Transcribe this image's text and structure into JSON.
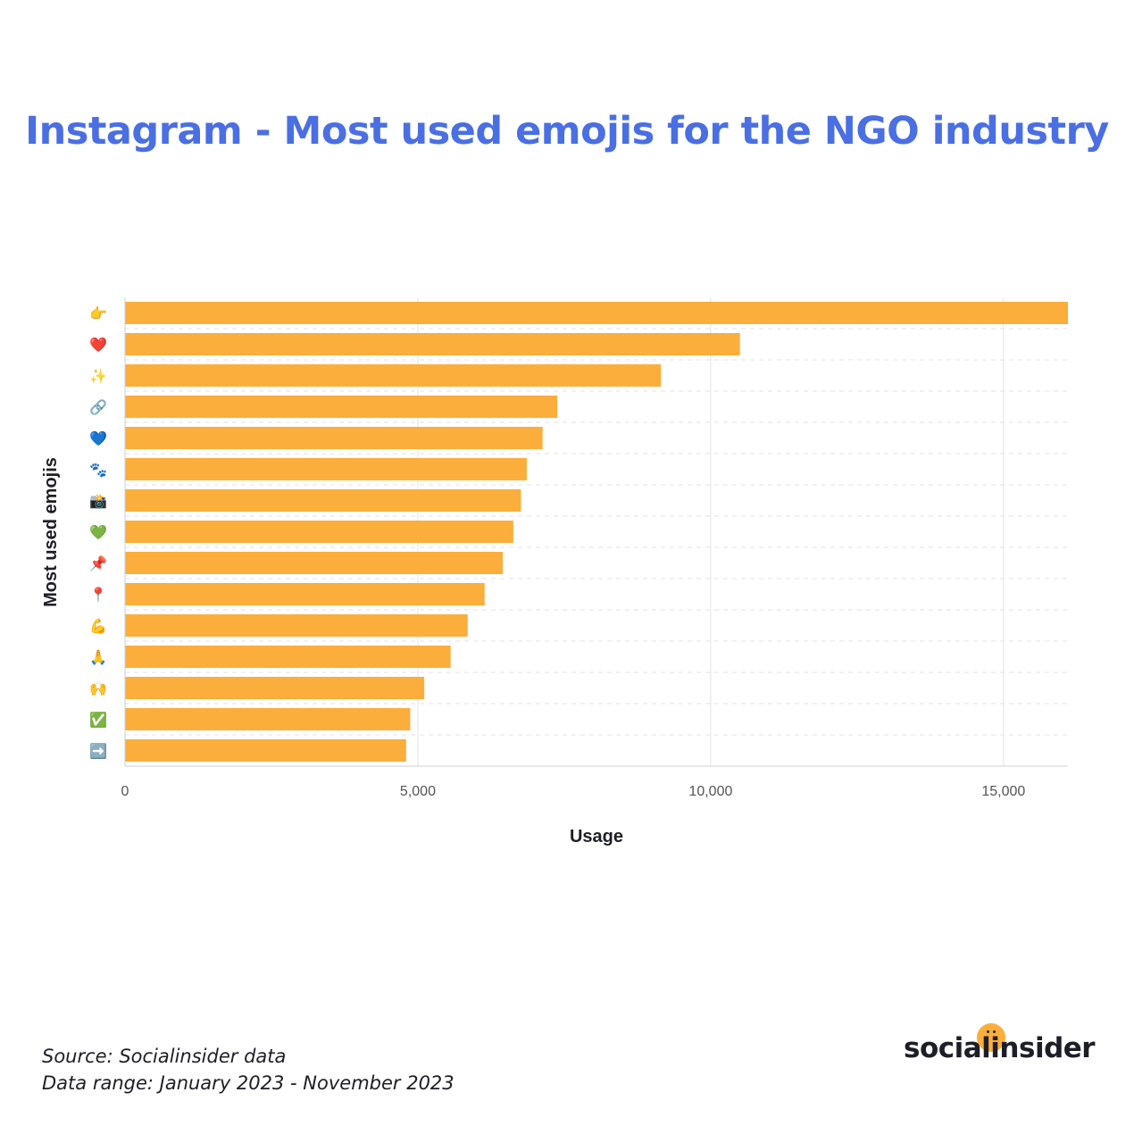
{
  "chart_data": {
    "type": "bar",
    "orientation": "horizontal",
    "title": "Instagram - Most used emojis for the NGO industry",
    "xlabel": "Usage",
    "ylabel": "Most used emojis",
    "xlim": [
      0,
      16100
    ],
    "xticks": [
      0,
      5000,
      10000,
      15000
    ],
    "xtick_labels": [
      "0",
      "5,000",
      "10,000",
      "15,000"
    ],
    "grid": true,
    "bar_color": "#fbae3b",
    "categories": [
      "👉",
      "❤️",
      "✨",
      "🔗",
      "💙",
      "🐾",
      "📸",
      "💚",
      "📌",
      "📍",
      "💪",
      "🙏",
      "🙌",
      "✅",
      "➡️"
    ],
    "values": [
      16100,
      10500,
      9150,
      7380,
      7130,
      6860,
      6760,
      6630,
      6450,
      6140,
      5850,
      5560,
      5110,
      4870,
      4800
    ]
  },
  "footer": {
    "source": "Source: Socialinsider data",
    "range": "Data range: January 2023 - November 2023"
  },
  "brand": {
    "name": "socialinsider",
    "accent": "#fbae3b"
  },
  "colors": {
    "title": "#4a6fe3",
    "grid": "#e3e3e8",
    "text": "#1e1e28",
    "tick": "#555555"
  }
}
